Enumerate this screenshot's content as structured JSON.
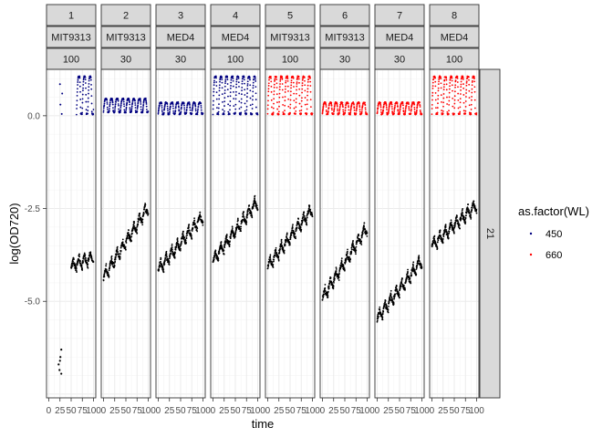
{
  "chart_data": {
    "type": "scatter",
    "xlabel": "time",
    "ylabel": "log(OD720)",
    "xlim": [
      -5,
      105
    ],
    "ylim": [
      -7.6,
      1.25
    ],
    "x_ticks": [
      0,
      25,
      50,
      75,
      100
    ],
    "x_tick_labels": [
      "0",
      "25",
      "50",
      "75",
      "100"
    ],
    "y_ticks": [
      0.0,
      -2.5,
      -5.0
    ],
    "y_tick_labels": [
      "0.0",
      "-2.5",
      "-5.0"
    ],
    "grid": true,
    "legend": {
      "title": "as.factor(WL)",
      "position": "right",
      "entries": [
        {
          "label": "450",
          "color": "#000080"
        },
        {
          "label": "660",
          "color": "#ff0000"
        }
      ]
    },
    "row_strip": "21",
    "panels": [
      {
        "strips": [
          "1",
          "MIT9313",
          "100"
        ],
        "wl_upper": "450",
        "upper_base": 0.05,
        "upper_amp": 1.0,
        "upper_start": 62,
        "lower_start_x": 50,
        "lower_start_y": -4.1,
        "lower_end_y": -3.85,
        "early_points": [
          [
            22,
            -6.7
          ],
          [
            25,
            -6.6
          ],
          [
            28,
            -6.3
          ],
          [
            24,
            -6.85
          ],
          [
            26,
            -6.5
          ],
          [
            28,
            -6.95
          ]
        ],
        "early_upper": [
          [
            25,
            0.85
          ],
          [
            26,
            0.3
          ],
          [
            29,
            0.05
          ],
          [
            30,
            0.6
          ]
        ]
      },
      {
        "strips": [
          "2",
          "MIT9313",
          "30"
        ],
        "wl_upper": "450",
        "upper_base": 0.1,
        "upper_amp": 0.35,
        "upper_start": 0,
        "lower_start_x": 0,
        "lower_start_y": -4.4,
        "lower_end_y": -2.5
      },
      {
        "strips": [
          "3",
          "MED4",
          "30"
        ],
        "wl_upper": "450",
        "upper_base": 0.05,
        "upper_amp": 0.3,
        "upper_start": 0,
        "lower_start_x": 0,
        "lower_start_y": -4.2,
        "lower_end_y": -2.75
      },
      {
        "strips": [
          "4",
          "MED4",
          "100"
        ],
        "wl_upper": "450",
        "upper_base": 0.05,
        "upper_amp": 1.0,
        "upper_start": 0,
        "lower_start_x": 0,
        "lower_start_y": -3.95,
        "lower_end_y": -2.35
      },
      {
        "strips": [
          "5",
          "MIT9313",
          "100"
        ],
        "wl_upper": "660",
        "upper_base": 0.05,
        "upper_amp": 1.0,
        "upper_start": 0,
        "lower_start_x": 0,
        "lower_start_y": -4.1,
        "lower_end_y": -2.55
      },
      {
        "strips": [
          "6",
          "MIT9313",
          "30"
        ],
        "wl_upper": "660",
        "upper_base": 0.05,
        "upper_amp": 0.3,
        "upper_start": 0,
        "lower_start_x": 0,
        "lower_start_y": -4.95,
        "lower_end_y": -3.05
      },
      {
        "strips": [
          "7",
          "MED4",
          "30"
        ],
        "wl_upper": "660",
        "upper_base": 0.05,
        "upper_amp": 0.3,
        "upper_start": 0,
        "lower_start_x": 0,
        "lower_start_y": -5.5,
        "lower_end_y": -3.95
      },
      {
        "strips": [
          "8",
          "MED4",
          "100"
        ],
        "wl_upper": "660",
        "upper_base": 0.05,
        "upper_amp": 1.0,
        "upper_start": 0,
        "lower_start_x": 0,
        "lower_start_y": -3.55,
        "lower_end_y": -2.45
      }
    ]
  }
}
